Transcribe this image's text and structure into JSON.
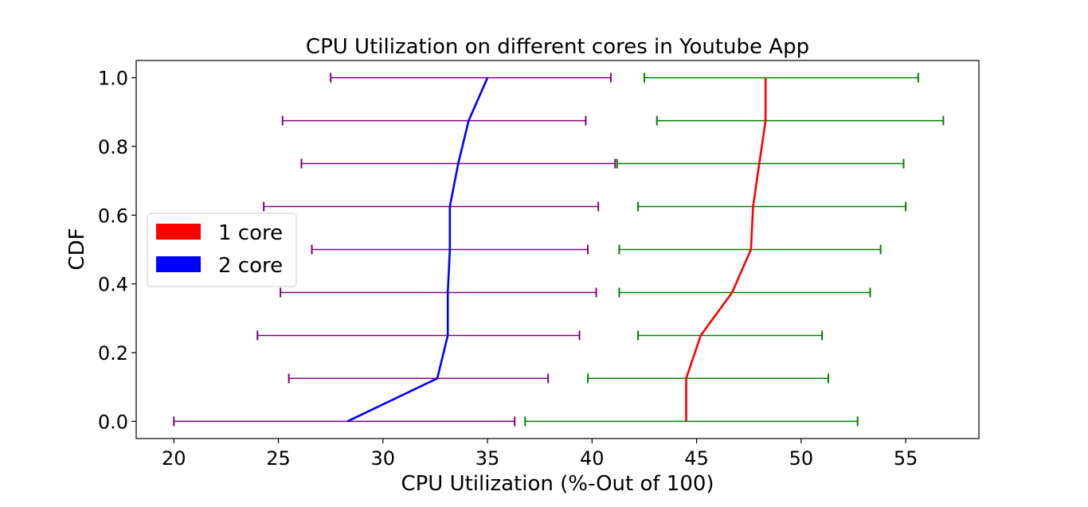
{
  "chart_data": {
    "type": "line",
    "title": "CPU Utilization on different cores in Youtube App",
    "xlabel": "CPU Utilization (%-Out of 100)",
    "ylabel": "CDF",
    "xlim": [
      18.2,
      58.5
    ],
    "ylim": [
      -0.05,
      1.05
    ],
    "xticks": [
      20,
      25,
      30,
      35,
      40,
      45,
      50,
      55
    ],
    "yticks": [
      0.0,
      0.2,
      0.4,
      0.6,
      0.8,
      1.0
    ],
    "xtick_labels": [
      "20",
      "25",
      "30",
      "35",
      "40",
      "45",
      "50",
      "55"
    ],
    "ytick_labels": [
      "0.0",
      "0.2",
      "0.4",
      "0.6",
      "0.8",
      "1.0"
    ],
    "legend": {
      "placement": "center-left",
      "entries": [
        "1 core",
        "2 core"
      ]
    },
    "series": [
      {
        "name": "1 core",
        "color": "#ff0000",
        "errorbar_color": "#008000",
        "x": [
          44.5,
          44.5,
          45.2,
          46.7,
          47.6,
          47.7,
          48.0,
          48.3,
          48.3
        ],
        "y": [
          0.0,
          0.125,
          0.25,
          0.375,
          0.5,
          0.625,
          0.75,
          0.875,
          1.0
        ],
        "err_low": [
          36.8,
          39.8,
          42.2,
          41.3,
          41.3,
          42.2,
          41.2,
          43.1,
          42.5
        ],
        "err_high": [
          52.7,
          51.3,
          51.0,
          53.3,
          53.8,
          55.0,
          54.9,
          56.8,
          55.6
        ]
      },
      {
        "name": "2 core",
        "color": "#0000ff",
        "errorbar_color": "#800080",
        "x": [
          28.3,
          32.6,
          33.1,
          33.1,
          33.2,
          33.2,
          33.6,
          34.1,
          35.0
        ],
        "y": [
          0.0,
          0.125,
          0.25,
          0.375,
          0.5,
          0.625,
          0.75,
          0.875,
          1.0
        ],
        "err_low": [
          20.0,
          25.5,
          24.0,
          25.1,
          26.6,
          24.3,
          26.1,
          25.2,
          27.5
        ],
        "err_high": [
          36.3,
          37.9,
          39.4,
          40.2,
          39.8,
          40.3,
          41.1,
          39.7,
          40.9
        ]
      }
    ]
  }
}
